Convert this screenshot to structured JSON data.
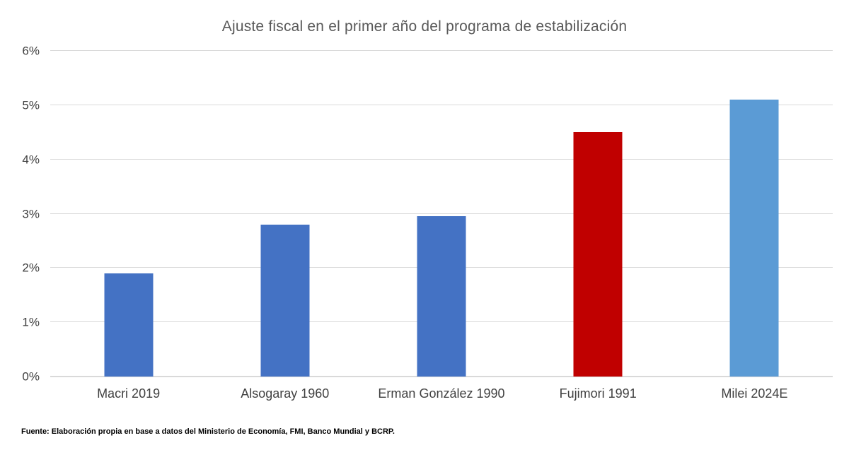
{
  "title": "Ajuste fiscal en el primer año del programa de estabilización",
  "footer": "Fuente: Elaboración propia en base a datos del Ministerio de Economía, FMI, Banco Mundial y BCRP.",
  "colors": {
    "default_bar": "#4472C4",
    "highlight_bar": "#C00000",
    "estimate_bar": "#5B9BD5",
    "gridline": "#D9D9D9",
    "title_text": "#595959",
    "axis_text": "#404040",
    "footer_text": "#000000"
  },
  "chart_data": {
    "type": "bar",
    "title": "Ajuste fiscal en el primer año del programa de estabilización",
    "categories": [
      "Macri 2019",
      "Alsogaray 1960",
      "Erman González 1990",
      "Fujimori 1991",
      "Milei 2024E"
    ],
    "values": [
      1.9,
      2.8,
      2.95,
      4.5,
      5.1
    ],
    "bar_colors": [
      "#4472C4",
      "#4472C4",
      "#4472C4",
      "#C00000",
      "#5B9BD5"
    ],
    "xlabel": "",
    "ylabel": "",
    "ylim": [
      0,
      6
    ],
    "ytick_step": 1,
    "yticks": [
      "0%",
      "1%",
      "2%",
      "3%",
      "4%",
      "5%",
      "6%"
    ],
    "grid": true,
    "legend": "none",
    "source_note": "Fuente: Elaboración propia en base a datos del Ministerio de Economía, FMI, Banco Mundial y BCRP."
  }
}
